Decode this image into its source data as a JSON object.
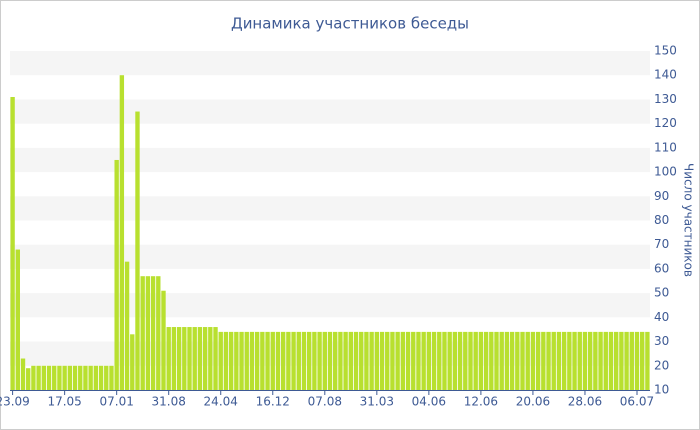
{
  "chart_data": {
    "type": "bar",
    "title": "Динамика участников беседы",
    "y_label": "Число участников",
    "categories": [
      "23.09",
      null,
      null,
      null,
      null,
      null,
      null,
      null,
      null,
      null,
      "17.05",
      null,
      null,
      null,
      null,
      null,
      null,
      null,
      null,
      null,
      "07.01",
      null,
      null,
      null,
      null,
      null,
      null,
      null,
      null,
      null,
      "31.08",
      null,
      null,
      null,
      null,
      null,
      null,
      null,
      null,
      null,
      "24.04",
      null,
      null,
      null,
      null,
      null,
      null,
      null,
      null,
      null,
      "16.12",
      null,
      null,
      null,
      null,
      null,
      null,
      null,
      null,
      null,
      "07.08",
      null,
      null,
      null,
      null,
      null,
      null,
      null,
      null,
      null,
      "31.03",
      null,
      null,
      null,
      null,
      null,
      null,
      null,
      null,
      null,
      "04.06",
      null,
      null,
      null,
      null,
      null,
      null,
      null,
      null,
      null,
      "12.06",
      null,
      null,
      null,
      null,
      null,
      null,
      null,
      null,
      null,
      "20.06",
      null,
      null,
      null,
      null,
      null,
      null,
      null,
      null,
      null,
      "28.06",
      null,
      null,
      null,
      null,
      null,
      null,
      null,
      null,
      null,
      "06.07",
      null,
      null
    ],
    "values": [
      131,
      68,
      23,
      19,
      20,
      20,
      20,
      20,
      20,
      20,
      20,
      20,
      20,
      20,
      20,
      20,
      20,
      20,
      20,
      20,
      105,
      140,
      63,
      33,
      125,
      57,
      57,
      57,
      57,
      51,
      36,
      36,
      36,
      36,
      36,
      36,
      36,
      36,
      36,
      36,
      34,
      34,
      34,
      34,
      34,
      34,
      34,
      34,
      34,
      34,
      34,
      34,
      34,
      34,
      34,
      34,
      34,
      34,
      34,
      34,
      34,
      34,
      34,
      34,
      34,
      34,
      34,
      34,
      34,
      34,
      34,
      34,
      34,
      34,
      34,
      34,
      34,
      34,
      34,
      34,
      34,
      34,
      34,
      34,
      34,
      34,
      34,
      34,
      34,
      34,
      34,
      34,
      34,
      34,
      34,
      34,
      34,
      34,
      34,
      34,
      34,
      34,
      34,
      34,
      34,
      34,
      34,
      34,
      34,
      34,
      34,
      34,
      34,
      34,
      34,
      34,
      34,
      34,
      34,
      34,
      34,
      34,
      34
    ],
    "color": "#b8e02f",
    "ylim": [
      10,
      150
    ],
    "yticks": [
      10,
      20,
      30,
      40,
      50,
      60,
      70,
      80,
      90,
      100,
      110,
      120,
      130,
      140,
      150
    ],
    "grid": true
  }
}
